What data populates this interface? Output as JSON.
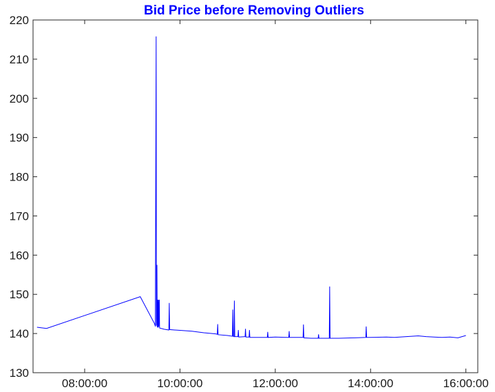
{
  "chart_data": {
    "type": "line",
    "title": "Bid Price before Removing Outliers",
    "xlabel": "",
    "ylabel": "",
    "x_unit": "time of day",
    "xlim": [
      "06:55:00",
      "16:15:00"
    ],
    "ylim": [
      130,
      220
    ],
    "x_ticks": [
      "08:00:00",
      "10:00:00",
      "12:00:00",
      "14:00:00",
      "16:00:00"
    ],
    "y_ticks": [
      130,
      140,
      150,
      160,
      170,
      180,
      190,
      200,
      210,
      220
    ],
    "grid": false,
    "legend": "none",
    "line_color": "#0000ff",
    "series": [
      {
        "points": [
          [
            "07:00:00",
            141.6
          ],
          [
            "07:12:00",
            141.3
          ],
          [
            "09:10:00",
            149.4
          ],
          [
            "09:28:00",
            142.5
          ],
          [
            "09:29:00",
            141.8
          ],
          [
            "09:30:00",
            215.8
          ],
          [
            "09:30:20",
            142.0
          ],
          [
            "09:31:00",
            157.5
          ],
          [
            "09:31:20",
            141.6
          ],
          [
            "09:32:00",
            148.6
          ],
          [
            "09:32:20",
            141.5
          ],
          [
            "09:33:00",
            148.6
          ],
          [
            "09:33:20",
            141.7
          ],
          [
            "09:34:00",
            148.6
          ],
          [
            "09:34:20",
            141.4
          ],
          [
            "09:40:00",
            141.1
          ],
          [
            "09:46:00",
            140.9
          ],
          [
            "09:46:30",
            147.8
          ],
          [
            "09:47:00",
            141.0
          ],
          [
            "10:00:00",
            140.8
          ],
          [
            "10:15:00",
            140.6
          ],
          [
            "10:30:00",
            140.2
          ],
          [
            "10:45:00",
            139.9
          ],
          [
            "10:47:00",
            139.8
          ],
          [
            "10:47:30",
            142.4
          ],
          [
            "10:48:00",
            139.7
          ],
          [
            "11:00:00",
            139.5
          ],
          [
            "11:06:00",
            139.3
          ],
          [
            "11:06:30",
            146.1
          ],
          [
            "11:07:00",
            139.3
          ],
          [
            "11:08:00",
            139.2
          ],
          [
            "11:08:30",
            148.4
          ],
          [
            "11:09:00",
            139.2
          ],
          [
            "11:13:00",
            139.2
          ],
          [
            "11:13:30",
            140.9
          ],
          [
            "11:14:00",
            139.1
          ],
          [
            "11:22:00",
            139.2
          ],
          [
            "11:22:30",
            141.2
          ],
          [
            "11:23:00",
            139.1
          ],
          [
            "11:27:00",
            139.1
          ],
          [
            "11:27:30",
            140.9
          ],
          [
            "11:28:00",
            139.0
          ],
          [
            "11:50:00",
            139.0
          ],
          [
            "11:50:30",
            140.4
          ],
          [
            "11:51:00",
            139.0
          ],
          [
            "12:00:00",
            139.1
          ],
          [
            "12:15:00",
            139.0
          ],
          [
            "12:17:00",
            139.0
          ],
          [
            "12:17:30",
            140.6
          ],
          [
            "12:18:00",
            139.0
          ],
          [
            "12:35:00",
            139.0
          ],
          [
            "12:35:30",
            142.3
          ],
          [
            "12:36:00",
            138.9
          ],
          [
            "12:45:00",
            138.8
          ],
          [
            "12:54:00",
            138.8
          ],
          [
            "12:54:30",
            139.8
          ],
          [
            "12:55:00",
            138.8
          ],
          [
            "13:08:00",
            138.8
          ],
          [
            "13:08:30",
            152.0
          ],
          [
            "13:09:00",
            138.8
          ],
          [
            "13:20:00",
            138.8
          ],
          [
            "13:40:00",
            138.9
          ],
          [
            "13:54:00",
            139.0
          ],
          [
            "13:54:30",
            141.8
          ],
          [
            "13:55:00",
            139.0
          ],
          [
            "14:00:00",
            139.0
          ],
          [
            "14:20:00",
            139.1
          ],
          [
            "14:30:00",
            139.0
          ],
          [
            "14:45:00",
            139.2
          ],
          [
            "15:00:00",
            139.4
          ],
          [
            "15:10:00",
            139.2
          ],
          [
            "15:20:00",
            139.1
          ],
          [
            "15:30:00",
            139.0
          ],
          [
            "15:40:00",
            139.1
          ],
          [
            "15:50:00",
            138.9
          ],
          [
            "16:00:00",
            139.5
          ]
        ]
      }
    ]
  }
}
